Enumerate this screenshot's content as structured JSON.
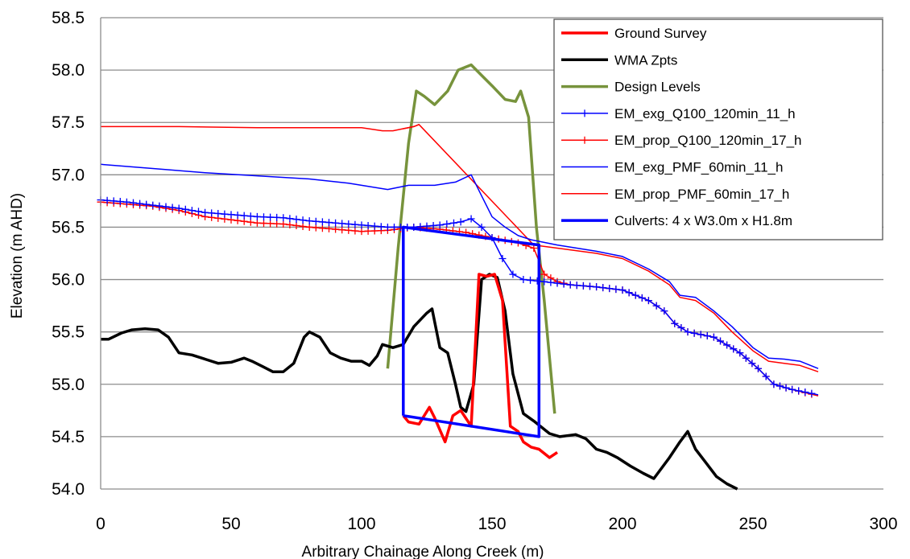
{
  "chart_data": {
    "type": "line",
    "xlabel": "Arbitrary Chainage Along Creek (m)",
    "ylabel": "Elevation (m AHD)",
    "xlim": [
      0,
      300
    ],
    "ylim": [
      54.0,
      58.5
    ],
    "xticks": [
      0,
      50,
      100,
      150,
      200,
      250,
      300
    ],
    "yticks": [
      54.0,
      54.5,
      55.0,
      55.5,
      56.0,
      56.5,
      57.0,
      57.5,
      58.0,
      58.5
    ],
    "ytick_labels": [
      "54.0",
      "54.5",
      "55.0",
      "55.5",
      "56.0",
      "56.5",
      "57.0",
      "57.5",
      "58.0",
      "58.5"
    ],
    "grid": "horizontal",
    "legend_position": "top-right",
    "series": [
      {
        "name": "Ground Survey",
        "color": "#ff0000",
        "style": "thick",
        "points": [
          [
            116,
            57.44
          ],
          [
            120,
            57.46
          ],
          [
            122,
            57.48
          ],
          [
            116,
            54.7
          ],
          [
            118,
            54.64
          ],
          [
            122,
            54.62
          ],
          [
            126,
            54.78
          ],
          [
            128,
            54.68
          ],
          [
            132,
            54.45
          ],
          [
            135,
            54.7
          ],
          [
            138,
            54.75
          ],
          [
            142,
            54.6
          ],
          [
            145,
            56.05
          ],
          [
            148,
            56.03
          ],
          [
            151,
            56.05
          ],
          [
            154,
            55.8
          ],
          [
            157,
            54.6
          ],
          [
            160,
            54.55
          ],
          [
            162,
            54.45
          ],
          [
            165,
            54.4
          ],
          [
            168,
            54.38
          ],
          [
            172,
            54.3
          ],
          [
            175,
            54.35
          ]
        ]
      },
      {
        "name": "WMA Zpts",
        "color": "#000000",
        "style": "thick",
        "points": [
          [
            0,
            55.43
          ],
          [
            3,
            55.43
          ],
          [
            8,
            55.49
          ],
          [
            12,
            55.52
          ],
          [
            17,
            55.53
          ],
          [
            22,
            55.52
          ],
          [
            26,
            55.45
          ],
          [
            30,
            55.3
          ],
          [
            35,
            55.28
          ],
          [
            40,
            55.24
          ],
          [
            45,
            55.2
          ],
          [
            50,
            55.21
          ],
          [
            55,
            55.25
          ],
          [
            58,
            55.22
          ],
          [
            62,
            55.17
          ],
          [
            66,
            55.12
          ],
          [
            70,
            55.12
          ],
          [
            74,
            55.2
          ],
          [
            78,
            55.45
          ],
          [
            80,
            55.5
          ],
          [
            84,
            55.45
          ],
          [
            88,
            55.3
          ],
          [
            92,
            55.25
          ],
          [
            96,
            55.22
          ],
          [
            100,
            55.22
          ],
          [
            103,
            55.18
          ],
          [
            106,
            55.27
          ],
          [
            108,
            55.38
          ],
          [
            112,
            55.35
          ],
          [
            116,
            55.38
          ],
          [
            120,
            55.55
          ],
          [
            125,
            55.68
          ],
          [
            127,
            55.72
          ],
          [
            130,
            55.35
          ],
          [
            133,
            55.3
          ],
          [
            136,
            55.0
          ],
          [
            138,
            54.78
          ],
          [
            140,
            54.74
          ],
          [
            143,
            55.0
          ],
          [
            146,
            56.0
          ],
          [
            149,
            56.05
          ],
          [
            152,
            56.02
          ],
          [
            155,
            55.7
          ],
          [
            158,
            55.1
          ],
          [
            162,
            54.72
          ],
          [
            166,
            54.65
          ],
          [
            172,
            54.53
          ],
          [
            176,
            54.5
          ],
          [
            182,
            54.52
          ],
          [
            186,
            54.48
          ],
          [
            190,
            54.38
          ],
          [
            194,
            54.35
          ],
          [
            198,
            54.3
          ],
          [
            203,
            54.22
          ],
          [
            208,
            54.15
          ],
          [
            212,
            54.1
          ],
          [
            218,
            54.3
          ],
          [
            222,
            54.45
          ],
          [
            225,
            54.55
          ],
          [
            228,
            54.38
          ],
          [
            232,
            54.25
          ],
          [
            236,
            54.12
          ],
          [
            240,
            54.05
          ],
          [
            244,
            54.0
          ]
        ]
      },
      {
        "name": "Design Levels",
        "color": "#77933c",
        "style": "thick",
        "points": [
          [
            110,
            55.15
          ],
          [
            114,
            56.3
          ],
          [
            118,
            57.3
          ],
          [
            121,
            57.8
          ],
          [
            124,
            57.75
          ],
          [
            128,
            57.67
          ],
          [
            133,
            57.8
          ],
          [
            137,
            58.0
          ],
          [
            142,
            58.05
          ],
          [
            146,
            57.95
          ],
          [
            150,
            57.85
          ],
          [
            155,
            57.72
          ],
          [
            159,
            57.7
          ],
          [
            161,
            57.8
          ],
          [
            164,
            57.55
          ],
          [
            167,
            56.5
          ],
          [
            170,
            55.8
          ],
          [
            174,
            54.72
          ]
        ]
      },
      {
        "name": "EM_exg_Q100_120min_11_h",
        "color": "#0000ff",
        "style": "thin-markers",
        "points": [
          [
            0,
            56.76
          ],
          [
            10,
            56.74
          ],
          [
            20,
            56.71
          ],
          [
            30,
            56.68
          ],
          [
            40,
            56.64
          ],
          [
            50,
            56.62
          ],
          [
            60,
            56.6
          ],
          [
            70,
            56.59
          ],
          [
            80,
            56.56
          ],
          [
            90,
            56.54
          ],
          [
            100,
            56.52
          ],
          [
            110,
            56.5
          ],
          [
            120,
            56.5
          ],
          [
            130,
            56.52
          ],
          [
            138,
            56.55
          ],
          [
            142,
            56.58
          ],
          [
            146,
            56.5
          ],
          [
            150,
            56.4
          ],
          [
            154,
            56.2
          ],
          [
            158,
            56.05
          ],
          [
            162,
            56.0
          ],
          [
            170,
            55.98
          ],
          [
            180,
            55.95
          ],
          [
            190,
            55.93
          ],
          [
            200,
            55.9
          ],
          [
            210,
            55.8
          ],
          [
            216,
            55.7
          ],
          [
            220,
            55.58
          ],
          [
            225,
            55.5
          ],
          [
            235,
            55.45
          ],
          [
            245,
            55.3
          ],
          [
            252,
            55.15
          ],
          [
            258,
            55.0
          ],
          [
            265,
            54.95
          ],
          [
            275,
            54.9
          ]
        ]
      },
      {
        "name": "EM_prop_Q100_120min_17_h",
        "color": "#ff0000",
        "style": "thin-markers",
        "points": [
          [
            0,
            56.74
          ],
          [
            10,
            56.72
          ],
          [
            20,
            56.7
          ],
          [
            30,
            56.66
          ],
          [
            40,
            56.6
          ],
          [
            50,
            56.57
          ],
          [
            60,
            56.54
          ],
          [
            70,
            56.53
          ],
          [
            80,
            56.5
          ],
          [
            90,
            56.48
          ],
          [
            100,
            56.46
          ],
          [
            110,
            56.47
          ],
          [
            120,
            56.5
          ],
          [
            130,
            56.48
          ],
          [
            140,
            56.45
          ],
          [
            150,
            56.4
          ],
          [
            160,
            56.35
          ],
          [
            166,
            56.3
          ],
          [
            170,
            56.05
          ],
          [
            175,
            55.98
          ],
          [
            180,
            55.95
          ],
          [
            190,
            55.93
          ],
          [
            200,
            55.9
          ],
          [
            210,
            55.8
          ],
          [
            216,
            55.7
          ],
          [
            220,
            55.58
          ],
          [
            225,
            55.5
          ],
          [
            235,
            55.45
          ],
          [
            245,
            55.3
          ],
          [
            252,
            55.15
          ],
          [
            258,
            55.0
          ],
          [
            265,
            54.95
          ],
          [
            275,
            54.89
          ]
        ]
      },
      {
        "name": "EM_exg_PMF_60min_11_h",
        "color": "#0000ff",
        "style": "thin",
        "points": [
          [
            0,
            57.1
          ],
          [
            20,
            57.06
          ],
          [
            40,
            57.02
          ],
          [
            60,
            56.99
          ],
          [
            80,
            56.96
          ],
          [
            95,
            56.92
          ],
          [
            110,
            56.86
          ],
          [
            118,
            56.9
          ],
          [
            128,
            56.9
          ],
          [
            136,
            56.93
          ],
          [
            142,
            57.0
          ],
          [
            146,
            56.8
          ],
          [
            150,
            56.6
          ],
          [
            155,
            56.5
          ],
          [
            160,
            56.42
          ],
          [
            165,
            56.38
          ],
          [
            175,
            56.33
          ],
          [
            190,
            56.27
          ],
          [
            200,
            56.22
          ],
          [
            210,
            56.1
          ],
          [
            218,
            55.98
          ],
          [
            222,
            55.85
          ],
          [
            228,
            55.83
          ],
          [
            235,
            55.7
          ],
          [
            242,
            55.55
          ],
          [
            250,
            55.35
          ],
          [
            256,
            55.25
          ],
          [
            262,
            55.24
          ],
          [
            268,
            55.22
          ],
          [
            275,
            55.15
          ]
        ]
      },
      {
        "name": "EM_prop_PMF_60min_17_h",
        "color": "#ff0000",
        "style": "thin",
        "points": [
          [
            0,
            57.46
          ],
          [
            30,
            57.46
          ],
          [
            60,
            57.45
          ],
          [
            80,
            57.45
          ],
          [
            100,
            57.45
          ],
          [
            108,
            57.42
          ],
          [
            112,
            57.42
          ],
          [
            116,
            57.44
          ],
          [
            120,
            57.46
          ],
          [
            122,
            57.48
          ],
          [
            166,
            56.33
          ],
          [
            175,
            56.3
          ],
          [
            190,
            56.25
          ],
          [
            200,
            56.2
          ],
          [
            210,
            56.08
          ],
          [
            218,
            55.95
          ],
          [
            222,
            55.83
          ],
          [
            228,
            55.8
          ],
          [
            235,
            55.68
          ],
          [
            242,
            55.5
          ],
          [
            250,
            55.32
          ],
          [
            256,
            55.22
          ],
          [
            262,
            55.2
          ],
          [
            268,
            55.18
          ],
          [
            275,
            55.12
          ]
        ]
      },
      {
        "name": "Culverts: 4 x W3.0m x H1.8m",
        "color": "#0000ff",
        "style": "thick",
        "points": [
          [
            116,
            54.7
          ],
          [
            116,
            56.5
          ],
          [
            168,
            56.33
          ],
          [
            168,
            54.5
          ],
          [
            116,
            54.7
          ]
        ]
      }
    ]
  }
}
